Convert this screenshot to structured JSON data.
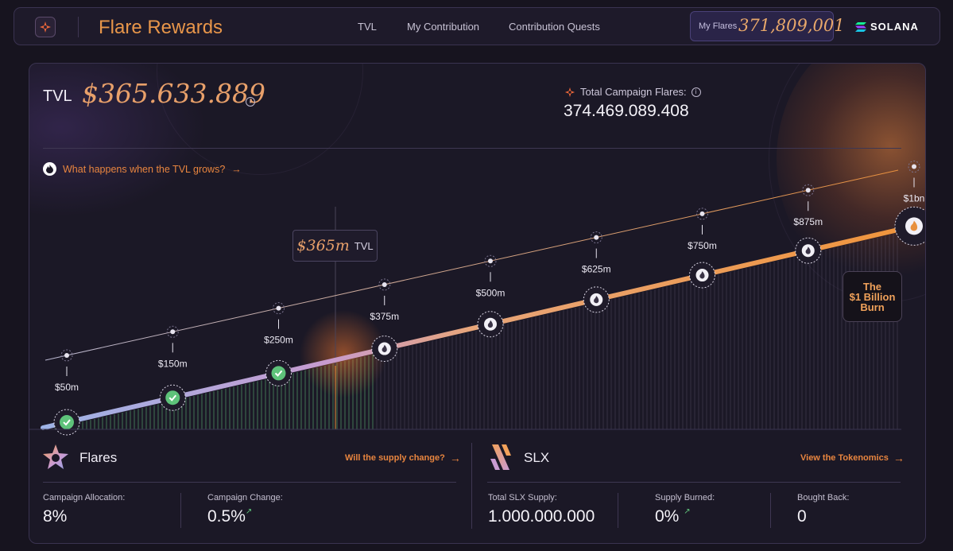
{
  "nav": {
    "brand": "Flare Rewards",
    "links": [
      "TVL",
      "My Contribution",
      "Contribution Quests"
    ],
    "my_flares_label": "My Flares",
    "my_flares_value": "371,809,001",
    "partner": "SOLANA"
  },
  "tvl": {
    "label": "TVL",
    "value": "$365.633.889",
    "campaign_flares_label": "Total Campaign Flares:",
    "campaign_flares_value": "374.469.089.408",
    "what_happens": "What happens when the TVL grows?"
  },
  "milestones": [
    {
      "label": "$50m",
      "tvl_m": 50,
      "reached": true
    },
    {
      "label": "$150m",
      "tvl_m": 150,
      "reached": true
    },
    {
      "label": "$250m",
      "tvl_m": 250,
      "reached": true
    },
    {
      "label": "$375m",
      "tvl_m": 375,
      "reached": false
    },
    {
      "label": "$500m",
      "tvl_m": 500,
      "reached": false
    },
    {
      "label": "$625m",
      "tvl_m": 625,
      "reached": false
    },
    {
      "label": "$750m",
      "tvl_m": 750,
      "reached": false
    },
    {
      "label": "$875m",
      "tvl_m": 875,
      "reached": false
    },
    {
      "label": "$1bn",
      "tvl_m": 1000,
      "reached": false
    }
  ],
  "current": {
    "tvl_m": 365,
    "value": "$365m",
    "unit": "TVL"
  },
  "burn": {
    "line1": "The",
    "line2": "$1 Billion",
    "line3": "Burn"
  },
  "flares": {
    "title": "Flares",
    "link": "Will the supply change?",
    "allocation_label": "Campaign Allocation:",
    "allocation_value": "8%",
    "change_label": "Campaign Change:",
    "change_value": "0.5%"
  },
  "slx": {
    "title": "SLX",
    "link": "View the Tokenomics",
    "supply_label": "Total SLX Supply:",
    "supply_value": "1.000.000.000",
    "burned_label": "Supply Burned:",
    "burned_value": "0%",
    "bought_label": "Bought Back:",
    "bought_value": "0"
  },
  "colors": {
    "accent": "#e8853f",
    "gold": "#e8a06a",
    "check": "#5ec27a"
  }
}
